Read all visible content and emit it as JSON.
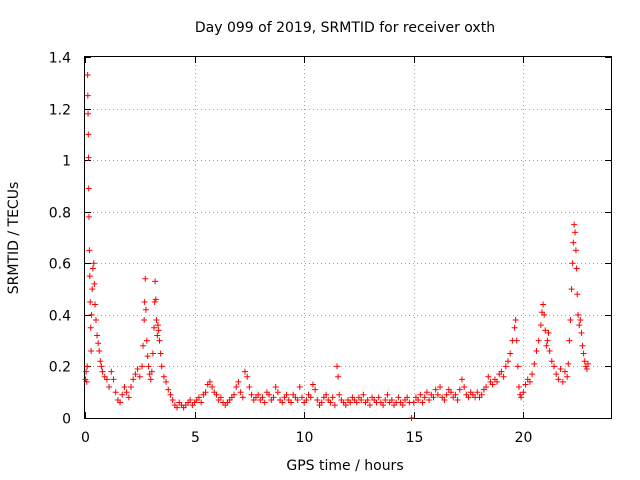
{
  "chart_data": {
    "type": "scatter",
    "title": "Day 099 of 2019, SRMTID for receiver oxth",
    "xlabel": "GPS time / hours",
    "ylabel": "SRMTID / TECUs",
    "xlim": [
      0,
      24
    ],
    "ylim": [
      0,
      1.4
    ],
    "x_ticks": [
      0,
      5,
      10,
      15,
      20
    ],
    "y_ticks": [
      0,
      0.2,
      0.4,
      0.6,
      0.8,
      1,
      1.2,
      1.4
    ],
    "x_tick_labels": [
      "0",
      "5",
      "10",
      "15",
      "20"
    ],
    "y_tick_labels": [
      "0",
      "0.2",
      "0.4",
      "0.6",
      "0.8",
      "1",
      "1.2",
      "1.4"
    ],
    "grid": true,
    "marker": "+",
    "color": "#ff0000",
    "series": [
      {
        "name": "SRMTID",
        "points": [
          [
            0.02,
            0.15
          ],
          [
            0.05,
            0.18
          ],
          [
            0.08,
            0.14
          ],
          [
            0.1,
            0.2
          ],
          [
            0.12,
            1.33
          ],
          [
            0.13,
            1.25
          ],
          [
            0.14,
            1.18
          ],
          [
            0.15,
            1.1
          ],
          [
            0.16,
            1.01
          ],
          [
            0.17,
            0.89
          ],
          [
            0.18,
            0.78
          ],
          [
            0.2,
            0.65
          ],
          [
            0.22,
            0.55
          ],
          [
            0.24,
            0.45
          ],
          [
            0.26,
            0.35
          ],
          [
            0.28,
            0.26
          ],
          [
            0.3,
            0.4
          ],
          [
            0.33,
            0.5
          ],
          [
            0.36,
            0.58
          ],
          [
            0.4,
            0.6
          ],
          [
            0.43,
            0.52
          ],
          [
            0.46,
            0.44
          ],
          [
            0.5,
            0.38
          ],
          [
            0.55,
            0.32
          ],
          [
            0.6,
            0.29
          ],
          [
            0.65,
            0.26
          ],
          [
            0.7,
            0.22
          ],
          [
            0.75,
            0.2
          ],
          [
            0.8,
            0.18
          ],
          [
            0.9,
            0.16
          ],
          [
            1.0,
            0.15
          ],
          [
            1.1,
            0.12
          ],
          [
            1.2,
            0.18
          ],
          [
            1.3,
            0.15
          ],
          [
            1.4,
            0.1
          ],
          [
            1.5,
            0.07
          ],
          [
            1.6,
            0.06
          ],
          [
            1.7,
            0.09
          ],
          [
            1.8,
            0.12
          ],
          [
            1.9,
            0.1
          ],
          [
            2.0,
            0.08
          ],
          [
            2.1,
            0.12
          ],
          [
            2.2,
            0.15
          ],
          [
            2.3,
            0.17
          ],
          [
            2.4,
            0.19
          ],
          [
            2.5,
            0.16
          ],
          [
            2.6,
            0.2
          ],
          [
            2.65,
            0.28
          ],
          [
            2.7,
            0.38
          ],
          [
            2.72,
            0.45
          ],
          [
            2.75,
            0.54
          ],
          [
            2.78,
            0.42
          ],
          [
            2.82,
            0.3
          ],
          [
            2.86,
            0.24
          ],
          [
            2.9,
            0.2
          ],
          [
            2.95,
            0.17
          ],
          [
            3.0,
            0.15
          ],
          [
            3.05,
            0.18
          ],
          [
            3.1,
            0.25
          ],
          [
            3.15,
            0.35
          ],
          [
            3.18,
            0.45
          ],
          [
            3.2,
            0.53
          ],
          [
            3.23,
            0.46
          ],
          [
            3.26,
            0.38
          ],
          [
            3.3,
            0.32
          ],
          [
            3.33,
            0.36
          ],
          [
            3.36,
            0.34
          ],
          [
            3.4,
            0.3
          ],
          [
            3.45,
            0.25
          ],
          [
            3.5,
            0.2
          ],
          [
            3.6,
            0.16
          ],
          [
            3.7,
            0.14
          ],
          [
            3.8,
            0.11
          ],
          [
            3.9,
            0.09
          ],
          [
            4.0,
            0.07
          ],
          [
            4.1,
            0.05
          ],
          [
            4.2,
            0.04
          ],
          [
            4.3,
            0.06
          ],
          [
            4.4,
            0.05
          ],
          [
            4.5,
            0.04
          ],
          [
            4.6,
            0.05
          ],
          [
            4.7,
            0.06
          ],
          [
            4.8,
            0.07
          ],
          [
            4.9,
            0.05
          ],
          [
            5.0,
            0.06
          ],
          [
            5.1,
            0.07
          ],
          [
            5.2,
            0.08
          ],
          [
            5.3,
            0.06
          ],
          [
            5.4,
            0.09
          ],
          [
            5.5,
            0.1
          ],
          [
            5.6,
            0.13
          ],
          [
            5.7,
            0.14
          ],
          [
            5.8,
            0.12
          ],
          [
            5.9,
            0.1
          ],
          [
            6.0,
            0.09
          ],
          [
            6.1,
            0.07
          ],
          [
            6.2,
            0.08
          ],
          [
            6.3,
            0.06
          ],
          [
            6.4,
            0.05
          ],
          [
            6.5,
            0.06
          ],
          [
            6.6,
            0.07
          ],
          [
            6.7,
            0.08
          ],
          [
            6.8,
            0.09
          ],
          [
            6.9,
            0.12
          ],
          [
            7.0,
            0.14
          ],
          [
            7.1,
            0.1
          ],
          [
            7.2,
            0.08
          ],
          [
            7.3,
            0.18
          ],
          [
            7.4,
            0.16
          ],
          [
            7.5,
            0.12
          ],
          [
            7.6,
            0.09
          ],
          [
            7.7,
            0.07
          ],
          [
            7.8,
            0.08
          ],
          [
            7.9,
            0.09
          ],
          [
            8.0,
            0.07
          ],
          [
            8.1,
            0.08
          ],
          [
            8.2,
            0.06
          ],
          [
            8.3,
            0.1
          ],
          [
            8.4,
            0.09
          ],
          [
            8.5,
            0.07
          ],
          [
            8.6,
            0.08
          ],
          [
            8.7,
            0.12
          ],
          [
            8.8,
            0.1
          ],
          [
            8.9,
            0.07
          ],
          [
            9.0,
            0.06
          ],
          [
            9.1,
            0.08
          ],
          [
            9.2,
            0.09
          ],
          [
            9.3,
            0.07
          ],
          [
            9.4,
            0.06
          ],
          [
            9.5,
            0.09
          ],
          [
            9.6,
            0.08
          ],
          [
            9.7,
            0.07
          ],
          [
            9.8,
            0.12
          ],
          [
            9.9,
            0.08
          ],
          [
            10.0,
            0.06
          ],
          [
            10.1,
            0.07
          ],
          [
            10.2,
            0.09
          ],
          [
            10.3,
            0.08
          ],
          [
            10.4,
            0.13
          ],
          [
            10.5,
            0.11
          ],
          [
            10.6,
            0.07
          ],
          [
            10.7,
            0.05
          ],
          [
            10.8,
            0.06
          ],
          [
            10.9,
            0.08
          ],
          [
            11.0,
            0.09
          ],
          [
            11.1,
            0.07
          ],
          [
            11.2,
            0.06
          ],
          [
            11.3,
            0.08
          ],
          [
            11.4,
            0.05
          ],
          [
            11.5,
            0.2
          ],
          [
            11.55,
            0.16
          ],
          [
            11.6,
            0.09
          ],
          [
            11.7,
            0.07
          ],
          [
            11.8,
            0.06
          ],
          [
            11.9,
            0.05
          ],
          [
            12.0,
            0.07
          ],
          [
            12.1,
            0.06
          ],
          [
            12.2,
            0.08
          ],
          [
            12.3,
            0.07
          ],
          [
            12.4,
            0.06
          ],
          [
            12.5,
            0.08
          ],
          [
            12.6,
            0.07
          ],
          [
            12.7,
            0.09
          ],
          [
            12.8,
            0.06
          ],
          [
            12.9,
            0.07
          ],
          [
            13.0,
            0.05
          ],
          [
            13.1,
            0.08
          ],
          [
            13.2,
            0.07
          ],
          [
            13.3,
            0.06
          ],
          [
            13.4,
            0.08
          ],
          [
            13.5,
            0.06
          ],
          [
            13.6,
            0.05
          ],
          [
            13.7,
            0.07
          ],
          [
            13.8,
            0.09
          ],
          [
            13.9,
            0.06
          ],
          [
            14.0,
            0.07
          ],
          [
            14.1,
            0.05
          ],
          [
            14.2,
            0.06
          ],
          [
            14.3,
            0.08
          ],
          [
            14.4,
            0.06
          ],
          [
            14.5,
            0.05
          ],
          [
            14.6,
            0.07
          ],
          [
            14.7,
            0.08
          ],
          [
            14.8,
            0.06
          ],
          [
            14.9,
            0.0
          ],
          [
            15.0,
            0.06
          ],
          [
            15.1,
            0.08
          ],
          [
            15.2,
            0.07
          ],
          [
            15.3,
            0.09
          ],
          [
            15.4,
            0.06
          ],
          [
            15.5,
            0.08
          ],
          [
            15.6,
            0.1
          ],
          [
            15.7,
            0.07
          ],
          [
            15.8,
            0.09
          ],
          [
            15.9,
            0.08
          ],
          [
            16.0,
            0.11
          ],
          [
            16.1,
            0.09
          ],
          [
            16.2,
            0.12
          ],
          [
            16.3,
            0.08
          ],
          [
            16.4,
            0.07
          ],
          [
            16.5,
            0.09
          ],
          [
            16.6,
            0.11
          ],
          [
            16.7,
            0.1
          ],
          [
            16.8,
            0.08
          ],
          [
            16.9,
            0.09
          ],
          [
            17.0,
            0.07
          ],
          [
            17.1,
            0.11
          ],
          [
            17.2,
            0.15
          ],
          [
            17.3,
            0.12
          ],
          [
            17.4,
            0.09
          ],
          [
            17.5,
            0.08
          ],
          [
            17.6,
            0.1
          ],
          [
            17.7,
            0.09
          ],
          [
            17.8,
            0.08
          ],
          [
            17.9,
            0.1
          ],
          [
            18.0,
            0.08
          ],
          [
            18.1,
            0.09
          ],
          [
            18.2,
            0.11
          ],
          [
            18.3,
            0.12
          ],
          [
            18.4,
            0.16
          ],
          [
            18.5,
            0.14
          ],
          [
            18.6,
            0.13
          ],
          [
            18.7,
            0.15
          ],
          [
            18.8,
            0.14
          ],
          [
            18.9,
            0.17
          ],
          [
            19.0,
            0.18
          ],
          [
            19.1,
            0.16
          ],
          [
            19.2,
            0.2
          ],
          [
            19.3,
            0.22
          ],
          [
            19.4,
            0.25
          ],
          [
            19.5,
            0.3
          ],
          [
            19.6,
            0.35
          ],
          [
            19.65,
            0.38
          ],
          [
            19.7,
            0.3
          ],
          [
            19.75,
            0.2
          ],
          [
            19.8,
            0.12
          ],
          [
            19.85,
            0.09
          ],
          [
            19.9,
            0.08
          ],
          [
            20.0,
            0.1
          ],
          [
            20.1,
            0.13
          ],
          [
            20.2,
            0.15
          ],
          [
            20.3,
            0.14
          ],
          [
            20.4,
            0.17
          ],
          [
            20.5,
            0.21
          ],
          [
            20.6,
            0.26
          ],
          [
            20.7,
            0.3
          ],
          [
            20.8,
            0.36
          ],
          [
            20.85,
            0.41
          ],
          [
            20.9,
            0.44
          ],
          [
            20.95,
            0.4
          ],
          [
            21.0,
            0.34
          ],
          [
            21.05,
            0.28
          ],
          [
            21.1,
            0.3
          ],
          [
            21.15,
            0.33
          ],
          [
            21.2,
            0.26
          ],
          [
            21.3,
            0.22
          ],
          [
            21.4,
            0.2
          ],
          [
            21.5,
            0.17
          ],
          [
            21.6,
            0.15
          ],
          [
            21.7,
            0.19
          ],
          [
            21.8,
            0.14
          ],
          [
            21.9,
            0.18
          ],
          [
            22.0,
            0.16
          ],
          [
            22.05,
            0.21
          ],
          [
            22.1,
            0.3
          ],
          [
            22.15,
            0.38
          ],
          [
            22.2,
            0.5
          ],
          [
            22.25,
            0.6
          ],
          [
            22.28,
            0.68
          ],
          [
            22.32,
            0.75
          ],
          [
            22.36,
            0.72
          ],
          [
            22.4,
            0.65
          ],
          [
            22.43,
            0.58
          ],
          [
            22.46,
            0.48
          ],
          [
            22.5,
            0.4
          ],
          [
            22.55,
            0.36
          ],
          [
            22.6,
            0.38
          ],
          [
            22.65,
            0.33
          ],
          [
            22.7,
            0.28
          ],
          [
            22.75,
            0.25
          ],
          [
            22.8,
            0.22
          ],
          [
            22.85,
            0.2
          ],
          [
            22.9,
            0.19
          ],
          [
            22.95,
            0.21
          ]
        ]
      }
    ]
  }
}
